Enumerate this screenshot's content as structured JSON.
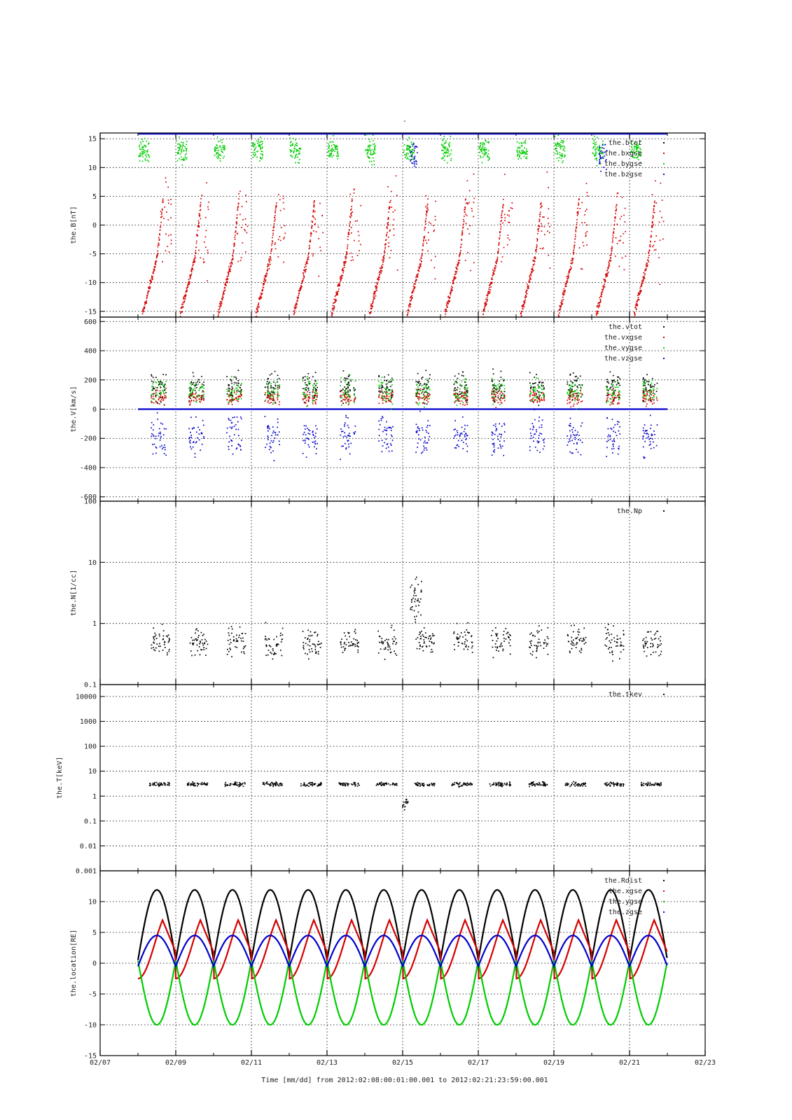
{
  "figure": {
    "top_title": "-",
    "x_axis_label": "Time [mm/dd]  from 2012:02:08:00:01:00.001  to  2012:02:21:23:59:00.001",
    "x_ticks": [
      "02/07",
      "02/09",
      "02/11",
      "02/13",
      "02/15",
      "02/17",
      "02/19",
      "02/21",
      "02/23"
    ],
    "x_range_days": [
      "2012-02-07",
      "2012-02-23"
    ],
    "data_start": "2012-02-08 00:01",
    "data_end": "2012-02-21 23:59",
    "grid": true
  },
  "chart_data": [
    {
      "type": "scatter",
      "ylabel": "the.B[nT]",
      "ylim": [
        -16,
        16
      ],
      "yticks": [
        15,
        10,
        5,
        0,
        -5,
        -10,
        -15
      ],
      "legend_position": "top-right",
      "series": [
        {
          "name": "the.btot",
          "color": "#000000",
          "style": "clipped at top of panel"
        },
        {
          "name": "the.bxgse",
          "color": "#d40000",
          "style": "sawtooth ramps from -15 to ~0 each orbit"
        },
        {
          "name": "the.bygse",
          "color": "#00cc00",
          "style": "clusters near +10 to +15 at orbit starts"
        },
        {
          "name": "the.bzgse",
          "color": "#0000cc",
          "style": "mostly clipped at top, scattered near 02/15 and 02/20"
        }
      ]
    },
    {
      "type": "scatter",
      "ylabel": "the.V[km/s]",
      "ylim": [
        -630,
        630
      ],
      "yticks": [
        600,
        400,
        200,
        0,
        -200,
        -400,
        -600
      ],
      "legend_position": "top-right",
      "series": [
        {
          "name": "the.vtot",
          "color": "#000000"
        },
        {
          "name": "the.vxgse",
          "color": "#d40000"
        },
        {
          "name": "the.vygse",
          "color": "#00cc00"
        },
        {
          "name": "the.vzgse",
          "color": "#0000cc"
        }
      ]
    },
    {
      "type": "scatter",
      "ylabel": "the.N[1/cc]",
      "yscale": "log",
      "ylim": [
        0.1,
        100
      ],
      "yticks": [
        100,
        10,
        1,
        0.1
      ],
      "legend_position": "top-right",
      "series": [
        {
          "name": "the.Np",
          "color": "#000000"
        }
      ]
    },
    {
      "type": "scatter",
      "ylabel": "the.T[keV]",
      "yscale": "log",
      "ylim": [
        0.001,
        30000
      ],
      "yticks": [
        10000,
        1000,
        100,
        10,
        1,
        0.1,
        0.01,
        0.001
      ],
      "legend_position": "top-right",
      "series": [
        {
          "name": "the.tkev",
          "color": "#000000",
          "typical_value": 3
        }
      ]
    },
    {
      "type": "line",
      "ylabel": "the.location[RE]",
      "ylim": [
        -15,
        15
      ],
      "yticks": [
        10,
        5,
        0,
        -5,
        -10,
        -15
      ],
      "legend_position": "top-right",
      "orbit_period_days": 1.0,
      "series": [
        {
          "name": "the.Rdist",
          "color": "#000000",
          "min": 0.5,
          "max": 11.9
        },
        {
          "name": "the.xgse",
          "color": "#d40000",
          "min": -2.5,
          "max": 7.0
        },
        {
          "name": "the.ygse",
          "color": "#00cc00",
          "min": -10.0,
          "max": 0.4
        },
        {
          "name": "the.zgse",
          "color": "#0000cc",
          "min": -0.5,
          "max": 4.5
        }
      ]
    }
  ]
}
